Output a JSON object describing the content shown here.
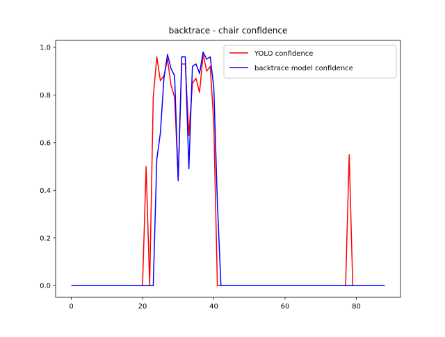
{
  "chart_data": {
    "type": "line",
    "title": "backtrace - chair confidence",
    "xlabel": "",
    "ylabel": "",
    "xlim": [
      -4.4,
      92.4
    ],
    "ylim": [
      -0.049,
      1.029
    ],
    "xticks": [
      0,
      20,
      40,
      60,
      80
    ],
    "yticks": [
      0.0,
      0.2,
      0.4,
      0.6,
      0.8,
      1.0
    ],
    "xtick_labels": [
      "0",
      "20",
      "40",
      "60",
      "80"
    ],
    "ytick_labels": [
      "0.0",
      "0.2",
      "0.4",
      "0.6",
      "0.8",
      "1.0"
    ],
    "grid": false,
    "legend_position": "top-right",
    "series": [
      {
        "name": "YOLO confidence",
        "color": "#ff0000",
        "x": [
          0,
          20,
          21,
          22,
          23,
          24,
          25,
          26,
          27,
          28,
          29,
          30,
          31,
          32,
          33,
          34,
          35,
          36,
          37,
          38,
          39,
          40,
          41,
          77,
          78,
          79,
          88
        ],
        "y": [
          0,
          0,
          0.5,
          0,
          0.79,
          0.96,
          0.86,
          0.88,
          0.95,
          0.84,
          0.79,
          0.45,
          0.93,
          0.93,
          0.63,
          0.85,
          0.87,
          0.81,
          0.97,
          0.9,
          0.92,
          0.68,
          0,
          0,
          0.55,
          0,
          0
        ]
      },
      {
        "name": "backtrace model confidence",
        "color": "#0000ff",
        "x": [
          0,
          23,
          24,
          25,
          26,
          27,
          28,
          29,
          30,
          31,
          32,
          33,
          34,
          35,
          36,
          37,
          38,
          39,
          40,
          41,
          42,
          88
        ],
        "y": [
          0,
          0,
          0.53,
          0.64,
          0.87,
          0.97,
          0.91,
          0.88,
          0.44,
          0.96,
          0.96,
          0.49,
          0.92,
          0.93,
          0.89,
          0.98,
          0.95,
          0.96,
          0.83,
          0.35,
          0,
          0
        ]
      }
    ]
  }
}
